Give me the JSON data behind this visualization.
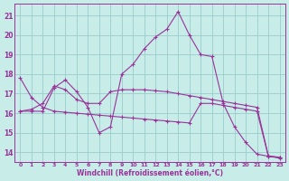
{
  "xlabel": "Windchill (Refroidissement éolien,°C)",
  "bg_color": "#c8ece8",
  "grid_color": "#99cccc",
  "line_color": "#993399",
  "xlim_min": -0.5,
  "xlim_max": 23.5,
  "ylim_min": 13.5,
  "ylim_max": 21.6,
  "yticks": [
    14,
    15,
    16,
    17,
    18,
    19,
    20,
    21
  ],
  "xticks": [
    0,
    1,
    2,
    3,
    4,
    5,
    6,
    7,
    8,
    9,
    10,
    11,
    12,
    13,
    14,
    15,
    16,
    17,
    18,
    19,
    20,
    21,
    22,
    23
  ],
  "series": [
    [
      16.1,
      16.1,
      16.1,
      17.3,
      17.7,
      17.1,
      16.3,
      15.0,
      15.3,
      18.0,
      18.5,
      19.3,
      19.9,
      20.3,
      21.2,
      20.0,
      19.0,
      18.9,
      16.5,
      15.3,
      14.5,
      13.9,
      13.8,
      13.7
    ],
    [
      17.8,
      16.8,
      16.3,
      16.1,
      16.05,
      16.0,
      15.95,
      15.9,
      15.85,
      15.8,
      15.75,
      15.7,
      15.65,
      15.6,
      15.55,
      15.5,
      16.5,
      16.5,
      16.4,
      16.3,
      16.2,
      16.1,
      13.8,
      13.75
    ],
    [
      16.1,
      16.2,
      16.5,
      17.4,
      17.2,
      16.7,
      16.5,
      16.5,
      17.1,
      17.2,
      17.2,
      17.2,
      17.15,
      17.1,
      17.0,
      16.9,
      16.8,
      16.7,
      16.6,
      16.5,
      16.4,
      16.3,
      13.82,
      13.72
    ]
  ]
}
